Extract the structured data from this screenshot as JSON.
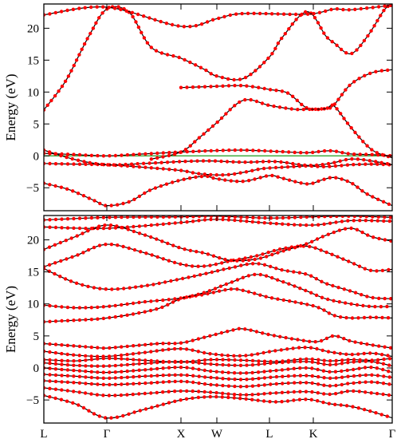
{
  "colors": {
    "bands": "#000000",
    "markers": "#ff0000",
    "fermi_level": "#1f9d1f",
    "background": "#ffffff"
  },
  "chart_data": [
    {
      "type": "line",
      "panel": "top",
      "ylabel": "Energy (eV)",
      "ylim": [
        -8.6,
        23.8
      ],
      "yticks": [
        -5,
        0,
        5,
        10,
        15,
        20
      ],
      "xlim": [
        0,
        6
      ],
      "grid": false,
      "fermi_level": 0,
      "marker_style": "red dots",
      "series": [
        {
          "x": [
            0,
            0.4,
            0.8,
            1,
            1.3,
            1.6,
            2,
            2.4,
            2.6,
            3,
            3.4,
            3.6,
            4,
            4.3,
            4.6,
            5,
            5.4,
            6
          ],
          "y": [
            -4.3,
            -5.3,
            -7.0,
            -7.8,
            -7.2,
            -5.3,
            -3.8,
            -3.2,
            -3.6,
            -4.0,
            -3.1,
            -3.5,
            -4.4,
            -3.8,
            -3.4,
            -4.2,
            -6.0,
            -7.8
          ]
        },
        {
          "x": [
            0,
            0.5,
            1,
            1.5,
            2,
            2.3,
            2.7,
            3,
            3.3,
            3.6,
            4,
            4.4,
            5,
            5.5,
            6
          ],
          "y": [
            -1.2,
            -1.3,
            -1.4,
            -1.8,
            -2.3,
            -2.8,
            -3.0,
            -2.6,
            -2.0,
            -1.8,
            -1.6,
            -1.7,
            -1.4,
            -1.3,
            -1.4
          ]
        },
        {
          "x": [
            0,
            0.5,
            1,
            1.5,
            2,
            2.5,
            3,
            3.5,
            4,
            4.5,
            5,
            5.5,
            6
          ],
          "y": [
            0.9,
            -0.6,
            -1.4,
            -1.2,
            -0.9,
            -0.8,
            -1.0,
            -0.9,
            -1.5,
            -1.2,
            -0.5,
            -0.8,
            -1.4
          ]
        },
        {
          "x": [
            0,
            0.5,
            1,
            1.5,
            2,
            2.5,
            3,
            3.5,
            4,
            4.5,
            5,
            5.5,
            6
          ],
          "y": [
            0.4,
            0.2,
            0.0,
            0.3,
            0.6,
            0.8,
            0.9,
            0.7,
            0.5,
            0.8,
            0.3,
            0.2,
            0.0
          ]
        },
        {
          "x": [
            0,
            0.35,
            0.7,
            1,
            1.3,
            1.6,
            2,
            2.4,
            2.6,
            3,
            3.4,
            3.6,
            4,
            4.4,
            4.6,
            5,
            5.4,
            5.8,
            6
          ],
          "y": [
            7.2,
            11.8,
            18.5,
            23.0,
            22.5,
            17.0,
            15.3,
            13.5,
            12.5,
            12.1,
            15.5,
            18.5,
            22.6,
            18.8,
            17.7,
            16.0,
            18.7,
            22.8,
            23.8
          ]
        },
        {
          "x": [
            0,
            1,
            2,
            2.6,
            3,
            4,
            4.6,
            5,
            6
          ],
          "y": [
            22.1,
            23.3,
            20.3,
            21.5,
            22.3,
            22.2,
            23.0,
            22.9,
            23.6
          ]
        },
        {
          "x": [
            2,
            2.3,
            2.6,
            3,
            3.4,
            3.7,
            4,
            4.4,
            4.6,
            5,
            5.5,
            6
          ],
          "y": [
            10.7,
            10.8,
            10.9,
            11.0,
            10.4,
            9.8,
            7.5,
            7.4,
            8.0,
            11.2,
            13.0,
            13.5
          ]
        },
        {
          "x": [
            1.6,
            2,
            2.3,
            2.6,
            3,
            3.4,
            3.8,
            4,
            4.4,
            4.6,
            5,
            5.5,
            6
          ],
          "y": [
            -0.5,
            0.6,
            2.8,
            5.2,
            8.7,
            7.9,
            7.3,
            7.3,
            7.4,
            7.8,
            4.5,
            1.0,
            -0.3
          ]
        }
      ]
    },
    {
      "type": "line",
      "panel": "bottom",
      "ylabel": "Energy (eV)",
      "ylim": [
        -8.6,
        23.8
      ],
      "yticks": [
        -5,
        0,
        5,
        10,
        15,
        20
      ],
      "xticks": [
        "L",
        "Γ",
        "X",
        "W",
        "L",
        "K",
        "Γ"
      ],
      "xtick_positions": [
        0,
        1,
        2,
        2.6,
        3.4,
        4.1,
        6
      ],
      "xlim": [
        0,
        6
      ],
      "grid": false,
      "marker_style": "red dots",
      "series": [
        {
          "x": [
            0,
            0.5,
            1,
            1.5,
            2,
            2.5,
            3,
            3.5,
            4,
            4.5,
            5,
            5.5,
            6
          ],
          "y": [
            -4.3,
            -5.6,
            -7.8,
            -6.5,
            -5.0,
            -4.5,
            -4.8,
            -5.3,
            -4.9,
            -5.6,
            -6.0,
            -6.8,
            -7.8
          ]
        },
        {
          "x": [
            0,
            0.5,
            1,
            1.5,
            2,
            2.5,
            3,
            3.5,
            4,
            4.5,
            5,
            5.5,
            6
          ],
          "y": [
            -3.1,
            -3.7,
            -4.3,
            -4.0,
            -3.6,
            -3.8,
            -4.2,
            -3.9,
            -3.7,
            -4.1,
            -3.6,
            -3.9,
            -4.3
          ]
        },
        {
          "x": [
            0,
            0.5,
            1,
            1.5,
            2,
            2.5,
            3,
            3.5,
            4,
            4.5,
            5,
            5.5,
            6
          ],
          "y": [
            -2.0,
            -2.3,
            -2.6,
            -2.4,
            -2.1,
            -2.6,
            -2.9,
            -2.5,
            -2.3,
            -2.8,
            -2.4,
            -2.2,
            -2.6
          ]
        },
        {
          "x": [
            0,
            0.5,
            1,
            1.5,
            2,
            2.5,
            3,
            3.5,
            4,
            4.5,
            5,
            5.5,
            6
          ],
          "y": [
            -1.0,
            -1.3,
            -1.6,
            -1.3,
            -1.1,
            -1.5,
            -1.8,
            -1.4,
            -1.2,
            -1.6,
            -1.3,
            -1.1,
            -1.5
          ]
        },
        {
          "x": [
            0,
            0.5,
            1,
            1.5,
            2,
            2.5,
            3,
            3.5,
            4,
            4.5,
            5,
            5.5,
            6
          ],
          "y": [
            0.0,
            -0.4,
            -0.7,
            -0.3,
            0.1,
            -0.5,
            -0.8,
            -0.4,
            0.0,
            -0.6,
            -0.3,
            0.1,
            -0.7
          ]
        },
        {
          "x": [
            0,
            0.5,
            1,
            1.5,
            2,
            2.5,
            3,
            3.5,
            4,
            4.5,
            5,
            5.5,
            6
          ],
          "y": [
            0.8,
            0.4,
            0.3,
            0.7,
            1.0,
            0.6,
            0.4,
            0.8,
            1.0,
            0.5,
            0.9,
            1.0,
            0.3
          ]
        },
        {
          "x": [
            0,
            0.5,
            1,
            1.5,
            2,
            2.5,
            3,
            3.5,
            4,
            4.5,
            5,
            5.5,
            6
          ],
          "y": [
            1.3,
            1.1,
            1.5,
            1.2,
            0.9,
            1.3,
            1.2,
            1.0,
            1.4,
            1.1,
            1.3,
            1.2,
            1.5
          ]
        },
        {
          "x": [
            0,
            0.5,
            1,
            1.5,
            2,
            2.5,
            3,
            3.5,
            4,
            4.5,
            5,
            5.5,
            6
          ],
          "y": [
            2.6,
            2.0,
            1.8,
            2.4,
            3.0,
            2.2,
            1.9,
            2.7,
            3.2,
            2.5,
            2.1,
            2.3,
            1.8
          ]
        },
        {
          "x": [
            0,
            0.4,
            0.8,
            1,
            1.3,
            1.7,
            2,
            2.4,
            2.8,
            3,
            3.4,
            3.8,
            4.2,
            4.6,
            5,
            5.5,
            6
          ],
          "y": [
            3.8,
            3.5,
            3.2,
            3.1,
            3.4,
            3.8,
            3.9,
            4.8,
            5.8,
            6.1,
            5.2,
            4.5,
            4.1,
            5.0,
            4.2,
            3.6,
            3.1
          ]
        },
        {
          "x": [
            0,
            0.4,
            0.8,
            1,
            1.3,
            1.7,
            2,
            2.4,
            2.8,
            3,
            3.4,
            3.8,
            4.2,
            4.6,
            5,
            5.5,
            6
          ],
          "y": [
            7.2,
            7.4,
            7.6,
            7.8,
            8.3,
            9.3,
            10.8,
            11.5,
            12.3,
            12.1,
            11.0,
            10.3,
            9.5,
            8.2,
            7.8,
            7.9,
            7.8
          ]
        },
        {
          "x": [
            0,
            0.5,
            1,
            1.5,
            2,
            2.4,
            2.8,
            3.2,
            3.6,
            4,
            4.4,
            5,
            5.5,
            6
          ],
          "y": [
            9.8,
            9.4,
            9.6,
            10.3,
            10.9,
            11.8,
            13.3,
            14.6,
            13.5,
            12.0,
            10.8,
            10.0,
            9.6,
            9.6
          ]
        },
        {
          "x": [
            0,
            0.5,
            1,
            1.5,
            2,
            2.4,
            2.8,
            3.2,
            3.6,
            4,
            4.4,
            5,
            5.5,
            6
          ],
          "y": [
            15.5,
            13.3,
            12.3,
            12.8,
            13.9,
            14.7,
            15.6,
            16.3,
            15.3,
            14.6,
            13.2,
            12.0,
            11.0,
            10.8
          ]
        },
        {
          "x": [
            0,
            0.5,
            1,
            1.5,
            2,
            2.4,
            2.8,
            3.2,
            3.6,
            4,
            4.4,
            5,
            5.5,
            6
          ],
          "y": [
            15.8,
            17.5,
            19.3,
            18.0,
            16.2,
            15.9,
            16.7,
            17.5,
            18.6,
            19.0,
            18.1,
            16.5,
            15.2,
            15.4
          ]
        },
        {
          "x": [
            0,
            0.5,
            1,
            1.5,
            2,
            2.4,
            2.8,
            3.2,
            3.6,
            4,
            4.4,
            5,
            5.5,
            6
          ],
          "y": [
            18.5,
            20.5,
            22.3,
            20.8,
            18.7,
            17.9,
            16.8,
            17.0,
            18.2,
            19.4,
            20.7,
            21.8,
            20.5,
            19.8
          ]
        },
        {
          "x": [
            0,
            1,
            2,
            2.6,
            3.4,
            4.1,
            5,
            6
          ],
          "y": [
            22.0,
            21.8,
            22.7,
            23.2,
            22.6,
            22.3,
            23.0,
            22.9
          ]
        },
        {
          "x": [
            0,
            1,
            2,
            2.6,
            3.4,
            4.1,
            5,
            6
          ],
          "y": [
            23.1,
            23.5,
            23.6,
            23.7,
            23.4,
            23.6,
            23.7,
            23.5
          ]
        }
      ]
    }
  ]
}
